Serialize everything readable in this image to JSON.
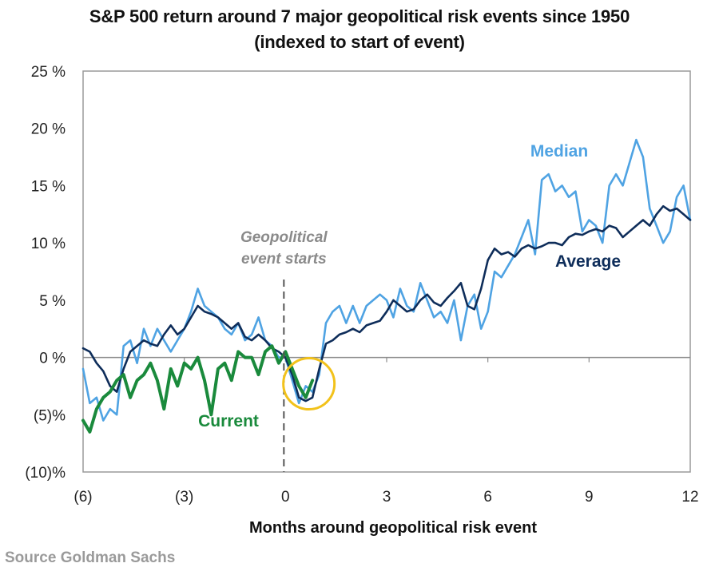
{
  "chart_data": {
    "type": "line",
    "title": "S&P 500 return around 7 major geopolitical risk events since 1950",
    "subtitle": "(indexed to start of event)",
    "xlabel": "Months around geopolitical risk event",
    "ylabel": "",
    "xlim": [
      -6,
      12
    ],
    "ylim": [
      -10,
      25
    ],
    "x_ticks": [
      -6,
      -3,
      0,
      3,
      6,
      9,
      12
    ],
    "x_tick_labels": [
      "(6)",
      "(3)",
      "0",
      "3",
      "6",
      "9",
      "12"
    ],
    "y_ticks": [
      25,
      20,
      15,
      10,
      5,
      0,
      -5,
      -10
    ],
    "y_tick_labels": [
      "25 %",
      "20 %",
      "15 %",
      "10 %",
      "5 %",
      "0 %",
      "(5)%",
      "(10)%"
    ],
    "grid": false,
    "zero_line": true,
    "event_marker": {
      "x": 0,
      "label_line1": "Geopolitical",
      "label_line2": "event starts",
      "style": "dashed"
    },
    "highlight_circle": {
      "x": 0.6,
      "y": -2.3,
      "color": "#F2C21B"
    },
    "source": "Source Goldman Sachs",
    "series": [
      {
        "name": "Average",
        "color": "#0E2D5A",
        "label_position": "below-right",
        "x": [
          -6,
          -5.8,
          -5.6,
          -5.4,
          -5.2,
          -5.0,
          -4.8,
          -4.6,
          -4.4,
          -4.2,
          -4.0,
          -3.8,
          -3.6,
          -3.4,
          -3.2,
          -3.0,
          -2.8,
          -2.6,
          -2.4,
          -2.2,
          -2.0,
          -1.8,
          -1.6,
          -1.4,
          -1.2,
          -1.0,
          -0.8,
          -0.6,
          -0.4,
          -0.2,
          0.0,
          0.2,
          0.4,
          0.6,
          0.8,
          1.0,
          1.2,
          1.4,
          1.6,
          1.8,
          2.0,
          2.2,
          2.4,
          2.6,
          2.8,
          3.0,
          3.2,
          3.4,
          3.6,
          3.8,
          4.0,
          4.2,
          4.4,
          4.6,
          4.8,
          5.0,
          5.2,
          5.4,
          5.6,
          5.8,
          6.0,
          6.2,
          6.4,
          6.6,
          6.8,
          7.0,
          7.2,
          7.4,
          7.6,
          7.8,
          8.0,
          8.2,
          8.4,
          8.6,
          8.8,
          9.0,
          9.2,
          9.4,
          9.6,
          9.8,
          10.0,
          10.2,
          10.4,
          10.6,
          10.8,
          11.0,
          11.2,
          11.4,
          11.6,
          11.8,
          12.0
        ],
        "values": [
          0.8,
          0.5,
          -0.5,
          -1.2,
          -2.5,
          -3.0,
          -1.0,
          0.5,
          1.0,
          1.5,
          1.2,
          1.0,
          2.0,
          2.8,
          2.0,
          2.5,
          3.5,
          4.5,
          4.0,
          3.8,
          3.5,
          3.0,
          2.5,
          3.0,
          1.8,
          1.5,
          2.0,
          1.5,
          0.8,
          0.5,
          0.0,
          -1.5,
          -3.5,
          -3.8,
          -3.5,
          -1.0,
          1.2,
          1.5,
          2.0,
          2.2,
          2.5,
          2.2,
          2.8,
          3.0,
          3.2,
          4.0,
          5.0,
          4.5,
          4.0,
          4.2,
          5.0,
          5.5,
          4.8,
          4.5,
          5.2,
          5.8,
          6.5,
          4.5,
          4.2,
          6.0,
          8.5,
          9.5,
          9.0,
          9.2,
          8.8,
          9.5,
          9.8,
          9.5,
          9.7,
          10.0,
          10.0,
          9.8,
          10.5,
          10.8,
          10.7,
          11.0,
          11.2,
          11.0,
          11.5,
          11.3,
          10.5,
          11.0,
          11.5,
          12.0,
          11.5,
          12.5,
          13.2,
          12.8,
          13.0,
          12.5,
          12.0
        ]
      },
      {
        "name": "Median",
        "color": "#4FA3E3",
        "label_position": "above",
        "x": [
          -6,
          -5.8,
          -5.6,
          -5.4,
          -5.2,
          -5.0,
          -4.8,
          -4.6,
          -4.4,
          -4.2,
          -4.0,
          -3.8,
          -3.6,
          -3.4,
          -3.2,
          -3.0,
          -2.8,
          -2.6,
          -2.4,
          -2.2,
          -2.0,
          -1.8,
          -1.6,
          -1.4,
          -1.2,
          -1.0,
          -0.8,
          -0.6,
          -0.4,
          -0.2,
          0.0,
          0.2,
          0.4,
          0.6,
          0.8,
          1.0,
          1.2,
          1.4,
          1.6,
          1.8,
          2.0,
          2.2,
          2.4,
          2.6,
          2.8,
          3.0,
          3.2,
          3.4,
          3.6,
          3.8,
          4.0,
          4.2,
          4.4,
          4.6,
          4.8,
          5.0,
          5.2,
          5.4,
          5.6,
          5.8,
          6.0,
          6.2,
          6.4,
          6.6,
          6.8,
          7.0,
          7.2,
          7.4,
          7.6,
          7.8,
          8.0,
          8.2,
          8.4,
          8.6,
          8.8,
          9.0,
          9.2,
          9.4,
          9.6,
          9.8,
          10.0,
          10.2,
          10.4,
          10.6,
          10.8,
          11.0,
          11.2,
          11.4,
          11.6,
          11.8,
          12.0
        ],
        "values": [
          -1.0,
          -4.0,
          -3.5,
          -5.5,
          -4.5,
          -5.0,
          1.0,
          1.5,
          -0.5,
          2.5,
          1.0,
          2.5,
          1.5,
          0.5,
          1.5,
          2.5,
          4.0,
          6.0,
          4.5,
          4.0,
          3.5,
          2.5,
          2.0,
          3.0,
          1.5,
          2.0,
          3.5,
          1.5,
          1.0,
          0.0,
          0.0,
          -2.0,
          -4.0,
          -2.5,
          -3.0,
          -1.5,
          3.0,
          4.0,
          4.5,
          3.0,
          4.5,
          3.0,
          4.5,
          5.0,
          5.5,
          5.0,
          3.5,
          6.0,
          4.5,
          4.0,
          6.5,
          5.0,
          3.5,
          4.0,
          3.0,
          5.0,
          1.5,
          4.5,
          5.5,
          2.5,
          4.0,
          7.5,
          7.0,
          8.0,
          9.0,
          10.5,
          12.0,
          9.0,
          15.5,
          16.0,
          14.5,
          15.0,
          14.0,
          14.5,
          11.0,
          12.0,
          11.5,
          10.0,
          15.0,
          16.0,
          15.0,
          17.0,
          19.0,
          17.5,
          13.0,
          11.5,
          10.0,
          11.0,
          14.0,
          15.0,
          12.0
        ]
      },
      {
        "name": "Current",
        "color": "#1A8A3C",
        "label_position": "below",
        "x": [
          -6,
          -5.8,
          -5.6,
          -5.4,
          -5.2,
          -5.0,
          -4.8,
          -4.6,
          -4.4,
          -4.2,
          -4.0,
          -3.8,
          -3.6,
          -3.4,
          -3.2,
          -3.0,
          -2.8,
          -2.6,
          -2.4,
          -2.2,
          -2.0,
          -1.8,
          -1.6,
          -1.4,
          -1.2,
          -1.0,
          -0.8,
          -0.6,
          -0.4,
          -0.2,
          0.0,
          0.2,
          0.4,
          0.6,
          0.8
        ],
        "values": [
          -5.5,
          -6.5,
          -4.5,
          -3.5,
          -3.0,
          -2.0,
          -1.5,
          -3.5,
          -2.0,
          -1.5,
          -0.5,
          -2.0,
          -4.5,
          -1.0,
          -2.5,
          -0.5,
          -1.0,
          0.0,
          -2.0,
          -5.0,
          -1.0,
          -0.5,
          -2.0,
          0.5,
          0.0,
          0.0,
          -1.5,
          0.5,
          1.0,
          -0.5,
          0.5,
          -1.0,
          -2.5,
          -3.5,
          -2.0
        ]
      }
    ]
  }
}
